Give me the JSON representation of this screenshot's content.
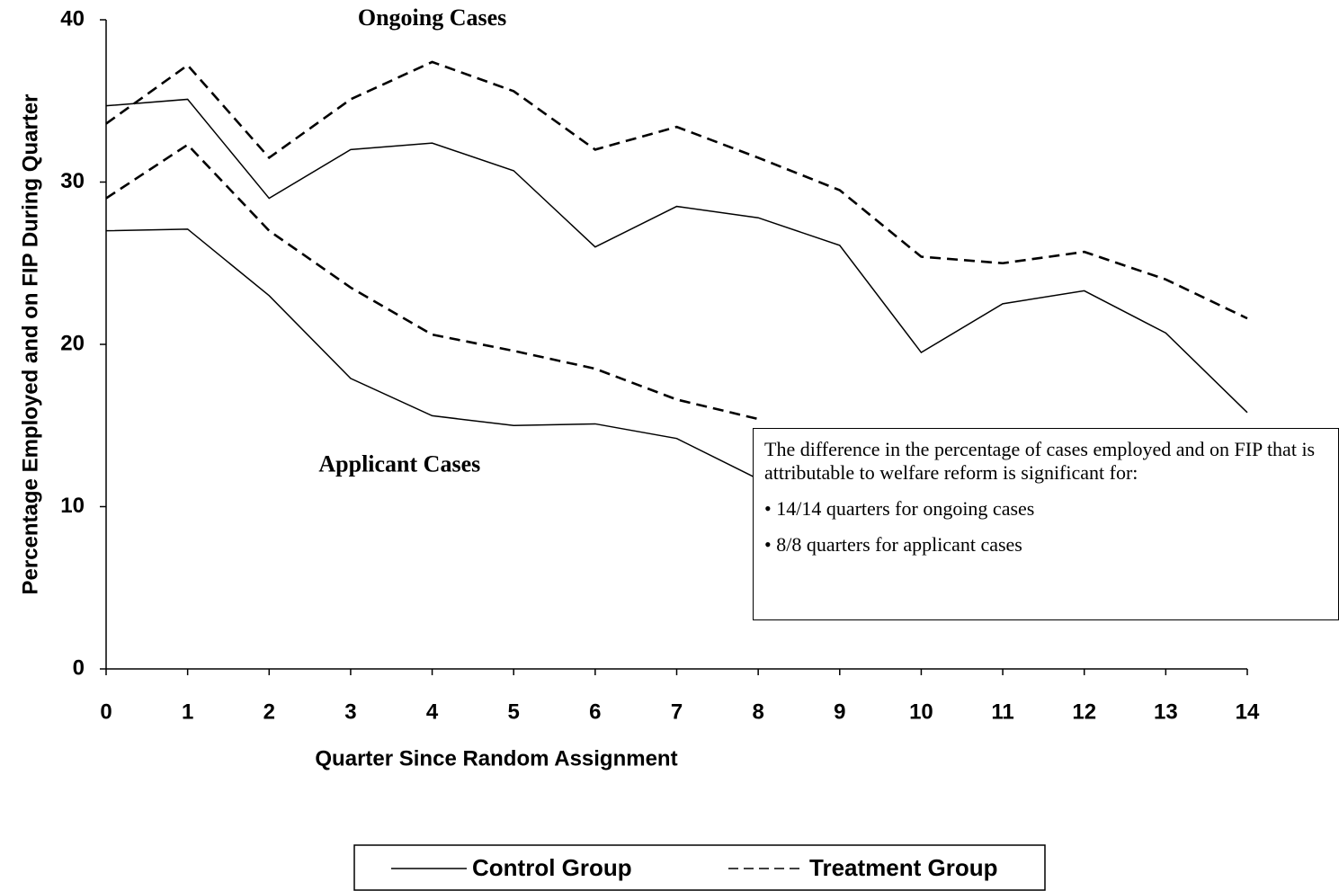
{
  "chart_data": {
    "type": "line",
    "xlabel": "Quarter Since Random Assignment",
    "ylabel": "Percentage Employed and on FIP During Quarter",
    "x": [
      0,
      1,
      2,
      3,
      4,
      5,
      6,
      7,
      8,
      9,
      10,
      11,
      12,
      13,
      14
    ],
    "xlim": [
      0,
      14
    ],
    "xticks": [
      0,
      1,
      2,
      3,
      4,
      5,
      6,
      7,
      8,
      9,
      10,
      11,
      12,
      13,
      14
    ],
    "ylim": [
      0,
      40
    ],
    "yticks": [
      0,
      10,
      20,
      30,
      40
    ],
    "series": [
      {
        "name": "Control Group",
        "color": "#000000",
        "line_style": "solid",
        "values": [
          34.7,
          35.1,
          29.0,
          32.0,
          32.4,
          30.7,
          26.0,
          28.5,
          27.8,
          26.1,
          19.5,
          22.5,
          23.3,
          20.7,
          15.8
        ]
      },
      {
        "name": "Treatment Group",
        "color": "#000000",
        "line_style": "dashed",
        "values": [
          33.6,
          37.2,
          31.5,
          35.1,
          37.4,
          35.6,
          32.0,
          33.4,
          31.5,
          29.5,
          25.4,
          25.0,
          25.7,
          24.0,
          21.6
        ]
      },
      {
        "name": "Control Group",
        "color": "#000000",
        "line_style": "solid",
        "values": [
          27.0,
          27.1,
          23.0,
          17.9,
          15.6,
          15.0,
          15.1,
          14.2,
          11.7,
          null,
          null,
          null,
          null,
          null,
          null
        ]
      },
      {
        "name": "Treatment Group",
        "color": "#000000",
        "line_style": "dashed",
        "values": [
          29.0,
          32.3,
          27.0,
          23.5,
          20.6,
          19.6,
          18.5,
          16.6,
          15.4,
          null,
          null,
          null,
          null,
          null,
          null
        ]
      }
    ],
    "annotations": [
      {
        "text": "Ongoing Cases",
        "x": 4,
        "y": 40
      },
      {
        "text": "Applicant Cases",
        "x": 3.6,
        "y": 12.5
      }
    ],
    "note": {
      "text": "The difference in the percentage of cases employed and on FIP that is attributable to welfare reform is significant for:",
      "bullets": [
        "• 14/14 quarters for ongoing cases",
        "• 8/8 quarters for applicant cases"
      ]
    }
  }
}
